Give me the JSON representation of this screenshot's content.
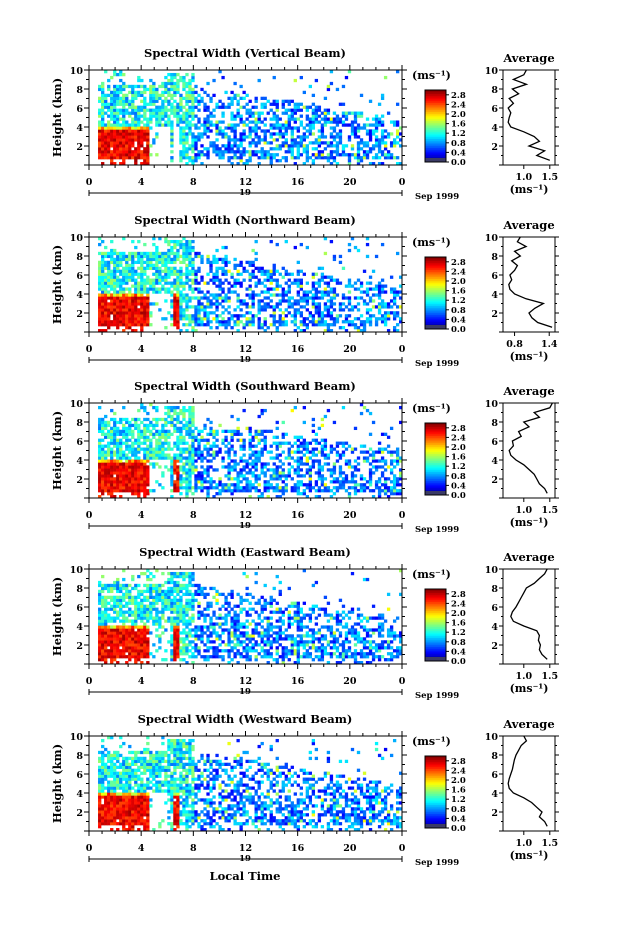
{
  "figure": {
    "bottom_label": "Local Time",
    "date_day": "19",
    "date_month": "Sep 1999"
  },
  "chart_data": [
    {
      "type": "heatmap",
      "title": "Spectral Width (Vertical Beam)",
      "ylabel": "Height (km)",
      "xlim": [
        0,
        24
      ],
      "ylim": [
        0,
        10
      ],
      "x_ticks": [
        "0",
        "4",
        "8",
        "12",
        "16",
        "20",
        "0"
      ],
      "y_ticks": [
        "2",
        "4",
        "6",
        "8",
        "10"
      ],
      "colorbar": {
        "unit": "(ms⁻¹)",
        "ticks": [
          "0.0",
          "0.4",
          "0.8",
          "1.2",
          "1.6",
          "2.0",
          "2.4",
          "2.8"
        ],
        "range": [
          0,
          3.0
        ]
      },
      "profile": {
        "title": "Average",
        "xlabel": "(ms⁻¹)",
        "xlim": [
          0.6,
          1.6
        ],
        "x_ticks": [
          "1.0",
          "1.5"
        ],
        "heights": [
          0.5,
          1,
          1.5,
          2,
          2.5,
          3,
          3.5,
          4,
          4.5,
          5,
          5.5,
          6,
          6.5,
          7,
          7.5,
          8,
          8.5,
          9,
          9.5,
          10
        ],
        "values": [
          1.5,
          1.25,
          1.4,
          1.1,
          1.3,
          1.2,
          1.0,
          0.75,
          0.7,
          0.72,
          0.75,
          0.7,
          0.8,
          0.72,
          0.9,
          0.78,
          1.05,
          0.8,
          1.0,
          1.05
        ]
      }
    },
    {
      "type": "heatmap",
      "title": "Spectral Width (Northward Beam)",
      "ylabel": "Height (km)",
      "xlim": [
        0,
        24
      ],
      "ylim": [
        0,
        10
      ],
      "x_ticks": [
        "0",
        "4",
        "8",
        "12",
        "16",
        "20",
        "0"
      ],
      "y_ticks": [
        "2",
        "4",
        "6",
        "8",
        "10"
      ],
      "colorbar": {
        "unit": "(ms⁻¹)",
        "ticks": [
          "0.0",
          "0.4",
          "0.8",
          "1.2",
          "1.6",
          "2.0",
          "2.4",
          "2.8"
        ],
        "range": [
          0,
          3.0
        ]
      },
      "profile": {
        "title": "Average",
        "xlabel": "(ms⁻¹)",
        "xlim": [
          0.6,
          1.5
        ],
        "x_ticks": [
          "0.8",
          "1.4"
        ],
        "heights": [
          0.5,
          1,
          1.5,
          2,
          2.5,
          3,
          3.5,
          4,
          4.5,
          5,
          5.5,
          6,
          6.5,
          7,
          7.5,
          8,
          8.5,
          9,
          9.5,
          10
        ],
        "values": [
          1.45,
          1.2,
          1.1,
          1.05,
          1.15,
          1.3,
          1.0,
          0.8,
          0.72,
          0.7,
          0.75,
          0.72,
          0.8,
          0.85,
          0.75,
          0.9,
          0.8,
          1.0,
          0.85,
          0.9
        ]
      }
    },
    {
      "type": "heatmap",
      "title": "Spectral Width (Southward Beam)",
      "ylabel": "Height (km)",
      "xlim": [
        0,
        24
      ],
      "ylim": [
        0,
        10
      ],
      "x_ticks": [
        "0",
        "4",
        "8",
        "12",
        "16",
        "20",
        "0"
      ],
      "y_ticks": [
        "2",
        "4",
        "6",
        "8",
        "10"
      ],
      "colorbar": {
        "unit": "(ms⁻¹)",
        "ticks": [
          "0.0",
          "0.4",
          "0.8",
          "1.2",
          "1.6",
          "2.0",
          "2.4",
          "2.8"
        ],
        "range": [
          0,
          3.0
        ]
      },
      "profile": {
        "title": "Average",
        "xlabel": "(ms⁻¹)",
        "xlim": [
          0.6,
          1.6
        ],
        "x_ticks": [
          "1.0",
          "1.5"
        ],
        "heights": [
          0.5,
          1,
          1.5,
          2,
          2.5,
          3,
          3.5,
          4,
          4.5,
          5,
          5.5,
          6,
          6.5,
          7,
          7.5,
          8,
          8.5,
          9,
          9.5,
          10
        ],
        "values": [
          1.45,
          1.4,
          1.3,
          1.25,
          1.2,
          1.1,
          1.0,
          0.85,
          0.75,
          0.72,
          0.8,
          0.78,
          0.95,
          0.9,
          1.1,
          1.0,
          1.3,
          1.2,
          1.5,
          1.55
        ]
      }
    },
    {
      "type": "heatmap",
      "title": "Spectral Width (Eastward Beam)",
      "ylabel": "Height (km)",
      "xlim": [
        0,
        24
      ],
      "ylim": [
        0,
        10
      ],
      "x_ticks": [
        "0",
        "4",
        "8",
        "12",
        "16",
        "20",
        "0"
      ],
      "y_ticks": [
        "2",
        "4",
        "6",
        "8",
        "10"
      ],
      "colorbar": {
        "unit": "(ms⁻¹)",
        "ticks": [
          "0.0",
          "0.4",
          "0.8",
          "1.2",
          "1.6",
          "2.0",
          "2.4",
          "2.8"
        ],
        "range": [
          0,
          3.0
        ]
      },
      "profile": {
        "title": "Average",
        "xlabel": "(ms⁻¹)",
        "xlim": [
          0.6,
          1.6
        ],
        "x_ticks": [
          "1.0",
          "1.5"
        ],
        "heights": [
          0.5,
          1,
          1.5,
          2,
          2.5,
          3,
          3.5,
          4,
          4.5,
          5,
          5.5,
          6,
          6.5,
          7,
          7.5,
          8,
          8.5,
          9,
          9.5,
          10
        ],
        "values": [
          1.45,
          1.35,
          1.3,
          1.32,
          1.28,
          1.3,
          1.25,
          1.0,
          0.8,
          0.75,
          0.78,
          0.85,
          0.9,
          0.95,
          1.0,
          1.05,
          1.2,
          1.3,
          1.4,
          1.45
        ]
      }
    },
    {
      "type": "heatmap",
      "title": "Spectral Width (Westward Beam)",
      "ylabel": "Height (km)",
      "xlim": [
        0,
        24
      ],
      "ylim": [
        0,
        10
      ],
      "x_ticks": [
        "0",
        "4",
        "8",
        "12",
        "16",
        "20",
        "0"
      ],
      "y_ticks": [
        "2",
        "4",
        "6",
        "8",
        "10"
      ],
      "colorbar": {
        "unit": "(ms⁻¹)",
        "ticks": [
          "0.0",
          "0.4",
          "0.8",
          "1.2",
          "1.6",
          "2.0",
          "2.4",
          "2.8"
        ],
        "range": [
          0,
          3.0
        ]
      },
      "profile": {
        "title": "Average",
        "xlabel": "(ms⁻¹)",
        "xlim": [
          0.6,
          1.6
        ],
        "x_ticks": [
          "1.0",
          "1.5"
        ],
        "heights": [
          0.5,
          1,
          1.5,
          2,
          2.5,
          3,
          3.5,
          4,
          4.5,
          5,
          5.5,
          6,
          6.5,
          7,
          7.5,
          8,
          8.5,
          9,
          9.5,
          10
        ],
        "values": [
          1.45,
          1.4,
          1.3,
          1.35,
          1.25,
          1.15,
          1.0,
          0.8,
          0.72,
          0.7,
          0.72,
          0.75,
          0.78,
          0.8,
          0.82,
          0.85,
          0.9,
          0.95,
          1.05,
          1.0
        ]
      }
    }
  ]
}
